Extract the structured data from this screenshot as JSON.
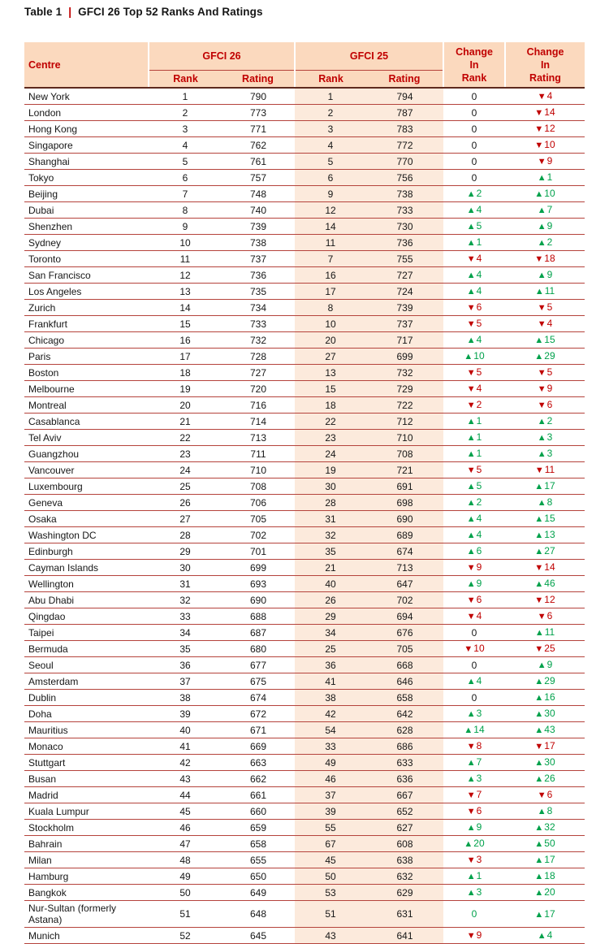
{
  "title": {
    "prefix": "Table 1",
    "separator": "|",
    "text": "GFCI 26 Top 52 Ranks And Ratings"
  },
  "colors": {
    "header_bg": "#FBD9BE",
    "gfci25_column_tint": "#FCEADC",
    "header_text": "#C00000",
    "negative_red": "#C00000",
    "positive_green": "#00A14B",
    "row_line": "#B5433C",
    "header_bottom_line": "#5E2A1E"
  },
  "table": {
    "headers": {
      "centre": "Centre",
      "gfci26": "GFCI 26",
      "gfci25": "GFCI 25",
      "change_rank_lines": [
        "Change",
        "In",
        "Rank"
      ],
      "change_rating_lines": [
        "Change",
        "In",
        "Rating"
      ],
      "sub": [
        "Rank",
        "Rating",
        "Rank",
        "Rating"
      ]
    },
    "rows": [
      {
        "centre": "New York",
        "g26_rank": "1",
        "g26_rating": "790",
        "g25_rank": "1",
        "g25_rating": "794",
        "chg_rank": {
          "dir": "none",
          "val": "0"
        },
        "chg_rating": {
          "dir": "down",
          "val": "4"
        }
      },
      {
        "centre": "London",
        "g26_rank": "2",
        "g26_rating": "773",
        "g25_rank": "2",
        "g25_rating": "787",
        "chg_rank": {
          "dir": "none",
          "val": "0"
        },
        "chg_rating": {
          "dir": "down",
          "val": "14"
        }
      },
      {
        "centre": "Hong Kong",
        "g26_rank": "3",
        "g26_rating": "771",
        "g25_rank": "3",
        "g25_rating": "783",
        "chg_rank": {
          "dir": "none",
          "val": "0"
        },
        "chg_rating": {
          "dir": "down",
          "val": "12"
        }
      },
      {
        "centre": "Singapore",
        "g26_rank": "4",
        "g26_rating": "762",
        "g25_rank": "4",
        "g25_rating": "772",
        "chg_rank": {
          "dir": "none",
          "val": "0"
        },
        "chg_rating": {
          "dir": "down",
          "val": "10"
        }
      },
      {
        "centre": "Shanghai",
        "g26_rank": "5",
        "g26_rating": "761",
        "g25_rank": "5",
        "g25_rating": "770",
        "chg_rank": {
          "dir": "none",
          "val": "0"
        },
        "chg_rating": {
          "dir": "down",
          "val": "9"
        }
      },
      {
        "centre": "Tokyo",
        "g26_rank": "6",
        "g26_rating": "757",
        "g25_rank": "6",
        "g25_rating": "756",
        "chg_rank": {
          "dir": "none",
          "val": "0"
        },
        "chg_rating": {
          "dir": "up",
          "val": "1"
        }
      },
      {
        "centre": "Beijing",
        "g26_rank": "7",
        "g26_rating": "748",
        "g25_rank": "9",
        "g25_rating": "738",
        "chg_rank": {
          "dir": "up",
          "val": "2"
        },
        "chg_rating": {
          "dir": "up",
          "val": "10"
        }
      },
      {
        "centre": "Dubai",
        "g26_rank": "8",
        "g26_rating": "740",
        "g25_rank": "12",
        "g25_rating": "733",
        "chg_rank": {
          "dir": "up",
          "val": "4"
        },
        "chg_rating": {
          "dir": "up",
          "val": "7"
        }
      },
      {
        "centre": "Shenzhen",
        "g26_rank": "9",
        "g26_rating": "739",
        "g25_rank": "14",
        "g25_rating": "730",
        "chg_rank": {
          "dir": "up",
          "val": "5"
        },
        "chg_rating": {
          "dir": "up",
          "val": "9"
        }
      },
      {
        "centre": "Sydney",
        "g26_rank": "10",
        "g26_rating": "738",
        "g25_rank": "11",
        "g25_rating": "736",
        "chg_rank": {
          "dir": "up",
          "val": "1"
        },
        "chg_rating": {
          "dir": "up",
          "val": "2"
        }
      },
      {
        "centre": "Toronto",
        "g26_rank": "11",
        "g26_rating": "737",
        "g25_rank": "7",
        "g25_rating": "755",
        "chg_rank": {
          "dir": "down",
          "val": "4"
        },
        "chg_rating": {
          "dir": "down",
          "val": "18"
        }
      },
      {
        "centre": "San Francisco",
        "g26_rank": "12",
        "g26_rating": "736",
        "g25_rank": "16",
        "g25_rating": "727",
        "chg_rank": {
          "dir": "up",
          "val": "4"
        },
        "chg_rating": {
          "dir": "up",
          "val": "9"
        }
      },
      {
        "centre": "Los Angeles",
        "g26_rank": "13",
        "g26_rating": "735",
        "g25_rank": "17",
        "g25_rating": "724",
        "chg_rank": {
          "dir": "up",
          "val": "4"
        },
        "chg_rating": {
          "dir": "up",
          "val": "11"
        }
      },
      {
        "centre": "Zurich",
        "g26_rank": "14",
        "g26_rating": "734",
        "g25_rank": "8",
        "g25_rating": "739",
        "chg_rank": {
          "dir": "down",
          "val": "6"
        },
        "chg_rating": {
          "dir": "down",
          "val": "5"
        }
      },
      {
        "centre": "Frankfurt",
        "g26_rank": "15",
        "g26_rating": "733",
        "g25_rank": "10",
        "g25_rating": "737",
        "chg_rank": {
          "dir": "down",
          "val": "5"
        },
        "chg_rating": {
          "dir": "down",
          "val": "4"
        }
      },
      {
        "centre": "Chicago",
        "g26_rank": "16",
        "g26_rating": "732",
        "g25_rank": "20",
        "g25_rating": "717",
        "chg_rank": {
          "dir": "up",
          "val": "4"
        },
        "chg_rating": {
          "dir": "up",
          "val": "15"
        }
      },
      {
        "centre": "Paris",
        "g26_rank": "17",
        "g26_rating": "728",
        "g25_rank": "27",
        "g25_rating": "699",
        "chg_rank": {
          "dir": "up",
          "val": "10"
        },
        "chg_rating": {
          "dir": "up",
          "val": "29"
        }
      },
      {
        "centre": "Boston",
        "g26_rank": "18",
        "g26_rating": "727",
        "g25_rank": "13",
        "g25_rating": "732",
        "chg_rank": {
          "dir": "down",
          "val": "5"
        },
        "chg_rating": {
          "dir": "down",
          "val": "5"
        }
      },
      {
        "centre": "Melbourne",
        "g26_rank": "19",
        "g26_rating": "720",
        "g25_rank": "15",
        "g25_rating": "729",
        "chg_rank": {
          "dir": "down",
          "val": "4"
        },
        "chg_rating": {
          "dir": "down",
          "val": "9"
        }
      },
      {
        "centre": "Montreal",
        "g26_rank": "20",
        "g26_rating": "716",
        "g25_rank": "18",
        "g25_rating": "722",
        "chg_rank": {
          "dir": "down",
          "val": "2"
        },
        "chg_rating": {
          "dir": "down",
          "val": "6"
        }
      },
      {
        "centre": "Casablanca",
        "g26_rank": "21",
        "g26_rating": "714",
        "g25_rank": "22",
        "g25_rating": "712",
        "chg_rank": {
          "dir": "up",
          "val": "1"
        },
        "chg_rating": {
          "dir": "up",
          "val": "2"
        }
      },
      {
        "centre": "Tel Aviv",
        "g26_rank": "22",
        "g26_rating": "713",
        "g25_rank": "23",
        "g25_rating": "710",
        "chg_rank": {
          "dir": "up",
          "val": "1"
        },
        "chg_rating": {
          "dir": "up",
          "val": "3"
        }
      },
      {
        "centre": "Guangzhou",
        "g26_rank": "23",
        "g26_rating": "711",
        "g25_rank": "24",
        "g25_rating": "708",
        "chg_rank": {
          "dir": "up",
          "val": "1"
        },
        "chg_rating": {
          "dir": "up",
          "val": "3"
        }
      },
      {
        "centre": "Vancouver",
        "g26_rank": "24",
        "g26_rating": "710",
        "g25_rank": "19",
        "g25_rating": "721",
        "chg_rank": {
          "dir": "down",
          "val": "5"
        },
        "chg_rating": {
          "dir": "down",
          "val": "11"
        }
      },
      {
        "centre": "Luxembourg",
        "g26_rank": "25",
        "g26_rating": "708",
        "g25_rank": "30",
        "g25_rating": "691",
        "chg_rank": {
          "dir": "up",
          "val": "5"
        },
        "chg_rating": {
          "dir": "up",
          "val": "17"
        }
      },
      {
        "centre": "Geneva",
        "g26_rank": "26",
        "g26_rating": "706",
        "g25_rank": "28",
        "g25_rating": "698",
        "chg_rank": {
          "dir": "up",
          "val": "2"
        },
        "chg_rating": {
          "dir": "up",
          "val": "8"
        }
      },
      {
        "centre": "Osaka",
        "g26_rank": "27",
        "g26_rating": "705",
        "g25_rank": "31",
        "g25_rating": "690",
        "chg_rank": {
          "dir": "up",
          "val": "4"
        },
        "chg_rating": {
          "dir": "up",
          "val": "15"
        }
      },
      {
        "centre": "Washington DC",
        "g26_rank": "28",
        "g26_rating": "702",
        "g25_rank": "32",
        "g25_rating": "689",
        "chg_rank": {
          "dir": "up",
          "val": "4"
        },
        "chg_rating": {
          "dir": "up",
          "val": "13"
        }
      },
      {
        "centre": "Edinburgh",
        "g26_rank": "29",
        "g26_rating": "701",
        "g25_rank": "35",
        "g25_rating": "674",
        "chg_rank": {
          "dir": "up",
          "val": "6"
        },
        "chg_rating": {
          "dir": "up",
          "val": "27"
        }
      },
      {
        "centre": "Cayman Islands",
        "g26_rank": "30",
        "g26_rating": "699",
        "g25_rank": "21",
        "g25_rating": "713",
        "chg_rank": {
          "dir": "down",
          "val": "9"
        },
        "chg_rating": {
          "dir": "down",
          "val": "14"
        }
      },
      {
        "centre": "Wellington",
        "g26_rank": "31",
        "g26_rating": "693",
        "g25_rank": "40",
        "g25_rating": "647",
        "chg_rank": {
          "dir": "up",
          "val": "9"
        },
        "chg_rating": {
          "dir": "up",
          "val": "46"
        }
      },
      {
        "centre": "Abu Dhabi",
        "g26_rank": "32",
        "g26_rating": "690",
        "g25_rank": "26",
        "g25_rating": "702",
        "chg_rank": {
          "dir": "down",
          "val": "6"
        },
        "chg_rating": {
          "dir": "down",
          "val": "12"
        }
      },
      {
        "centre": "Qingdao",
        "g26_rank": "33",
        "g26_rating": "688",
        "g25_rank": "29",
        "g25_rating": "694",
        "chg_rank": {
          "dir": "down",
          "val": "4"
        },
        "chg_rating": {
          "dir": "down",
          "val": "6"
        }
      },
      {
        "centre": "Taipei",
        "g26_rank": "34",
        "g26_rating": "687",
        "g25_rank": "34",
        "g25_rating": "676",
        "chg_rank": {
          "dir": "none",
          "val": "0"
        },
        "chg_rating": {
          "dir": "up",
          "val": "11"
        }
      },
      {
        "centre": "Bermuda",
        "g26_rank": "35",
        "g26_rating": "680",
        "g25_rank": "25",
        "g25_rating": "705",
        "chg_rank": {
          "dir": "down",
          "val": "10"
        },
        "chg_rating": {
          "dir": "down",
          "val": "25"
        }
      },
      {
        "centre": "Seoul",
        "g26_rank": "36",
        "g26_rating": "677",
        "g25_rank": "36",
        "g25_rating": "668",
        "chg_rank": {
          "dir": "none",
          "val": "0"
        },
        "chg_rating": {
          "dir": "up",
          "val": "9"
        }
      },
      {
        "centre": "Amsterdam",
        "g26_rank": "37",
        "g26_rating": "675",
        "g25_rank": "41",
        "g25_rating": "646",
        "chg_rank": {
          "dir": "up",
          "val": "4"
        },
        "chg_rating": {
          "dir": "up",
          "val": "29"
        }
      },
      {
        "centre": "Dublin",
        "g26_rank": "38",
        "g26_rating": "674",
        "g25_rank": "38",
        "g25_rating": "658",
        "chg_rank": {
          "dir": "none",
          "val": "0"
        },
        "chg_rating": {
          "dir": "up",
          "val": "16"
        }
      },
      {
        "centre": "Doha",
        "g26_rank": "39",
        "g26_rating": "672",
        "g25_rank": "42",
        "g25_rating": "642",
        "chg_rank": {
          "dir": "up",
          "val": "3"
        },
        "chg_rating": {
          "dir": "up",
          "val": "30"
        }
      },
      {
        "centre": "Mauritius",
        "g26_rank": "40",
        "g26_rating": "671",
        "g25_rank": "54",
        "g25_rating": "628",
        "chg_rank": {
          "dir": "up",
          "val": "14"
        },
        "chg_rating": {
          "dir": "up",
          "val": "43"
        }
      },
      {
        "centre": "Monaco",
        "g26_rank": "41",
        "g26_rating": "669",
        "g25_rank": "33",
        "g25_rating": "686",
        "chg_rank": {
          "dir": "down",
          "val": "8"
        },
        "chg_rating": {
          "dir": "down",
          "val": "17"
        }
      },
      {
        "centre": "Stuttgart",
        "g26_rank": "42",
        "g26_rating": "663",
        "g25_rank": "49",
        "g25_rating": "633",
        "chg_rank": {
          "dir": "up",
          "val": "7"
        },
        "chg_rating": {
          "dir": "up",
          "val": "30"
        }
      },
      {
        "centre": "Busan",
        "g26_rank": "43",
        "g26_rating": "662",
        "g25_rank": "46",
        "g25_rating": "636",
        "chg_rank": {
          "dir": "up",
          "val": "3"
        },
        "chg_rating": {
          "dir": "up",
          "val": "26"
        }
      },
      {
        "centre": "Madrid",
        "g26_rank": "44",
        "g26_rating": "661",
        "g25_rank": "37",
        "g25_rating": "667",
        "chg_rank": {
          "dir": "down",
          "val": "7"
        },
        "chg_rating": {
          "dir": "down",
          "val": "6"
        }
      },
      {
        "centre": "Kuala Lumpur",
        "g26_rank": "45",
        "g26_rating": "660",
        "g25_rank": "39",
        "g25_rating": "652",
        "chg_rank": {
          "dir": "down",
          "val": "6"
        },
        "chg_rating": {
          "dir": "up",
          "val": "8"
        }
      },
      {
        "centre": "Stockholm",
        "g26_rank": "46",
        "g26_rating": "659",
        "g25_rank": "55",
        "g25_rating": "627",
        "chg_rank": {
          "dir": "up",
          "val": "9"
        },
        "chg_rating": {
          "dir": "up",
          "val": "32"
        }
      },
      {
        "centre": "Bahrain",
        "g26_rank": "47",
        "g26_rating": "658",
        "g25_rank": "67",
        "g25_rating": "608",
        "chg_rank": {
          "dir": "up",
          "val": "20"
        },
        "chg_rating": {
          "dir": "up",
          "val": "50"
        }
      },
      {
        "centre": "Milan",
        "g26_rank": "48",
        "g26_rating": "655",
        "g25_rank": "45",
        "g25_rating": "638",
        "chg_rank": {
          "dir": "down",
          "val": "3"
        },
        "chg_rating": {
          "dir": "up",
          "val": "17"
        }
      },
      {
        "centre": "Hamburg",
        "g26_rank": "49",
        "g26_rating": "650",
        "g25_rank": "50",
        "g25_rating": "632",
        "chg_rank": {
          "dir": "up",
          "val": "1"
        },
        "chg_rating": {
          "dir": "up",
          "val": "18"
        }
      },
      {
        "centre": "Bangkok",
        "g26_rank": "50",
        "g26_rating": "649",
        "g25_rank": "53",
        "g25_rating": "629",
        "chg_rank": {
          "dir": "up",
          "val": "3"
        },
        "chg_rating": {
          "dir": "up",
          "val": "20"
        }
      },
      {
        "centre": "Nur-Sultan (formerly Astana)",
        "g26_rank": "51",
        "g26_rating": "648",
        "g25_rank": "51",
        "g25_rating": "631",
        "chg_rank": {
          "dir": "none",
          "val": "0",
          "green": true
        },
        "chg_rating": {
          "dir": "up",
          "val": "17"
        }
      },
      {
        "centre": "Munich",
        "g26_rank": "52",
        "g26_rating": "645",
        "g25_rank": "43",
        "g25_rating": "641",
        "chg_rank": {
          "dir": "down",
          "val": "9"
        },
        "chg_rating": {
          "dir": "up",
          "val": "4"
        }
      }
    ]
  }
}
